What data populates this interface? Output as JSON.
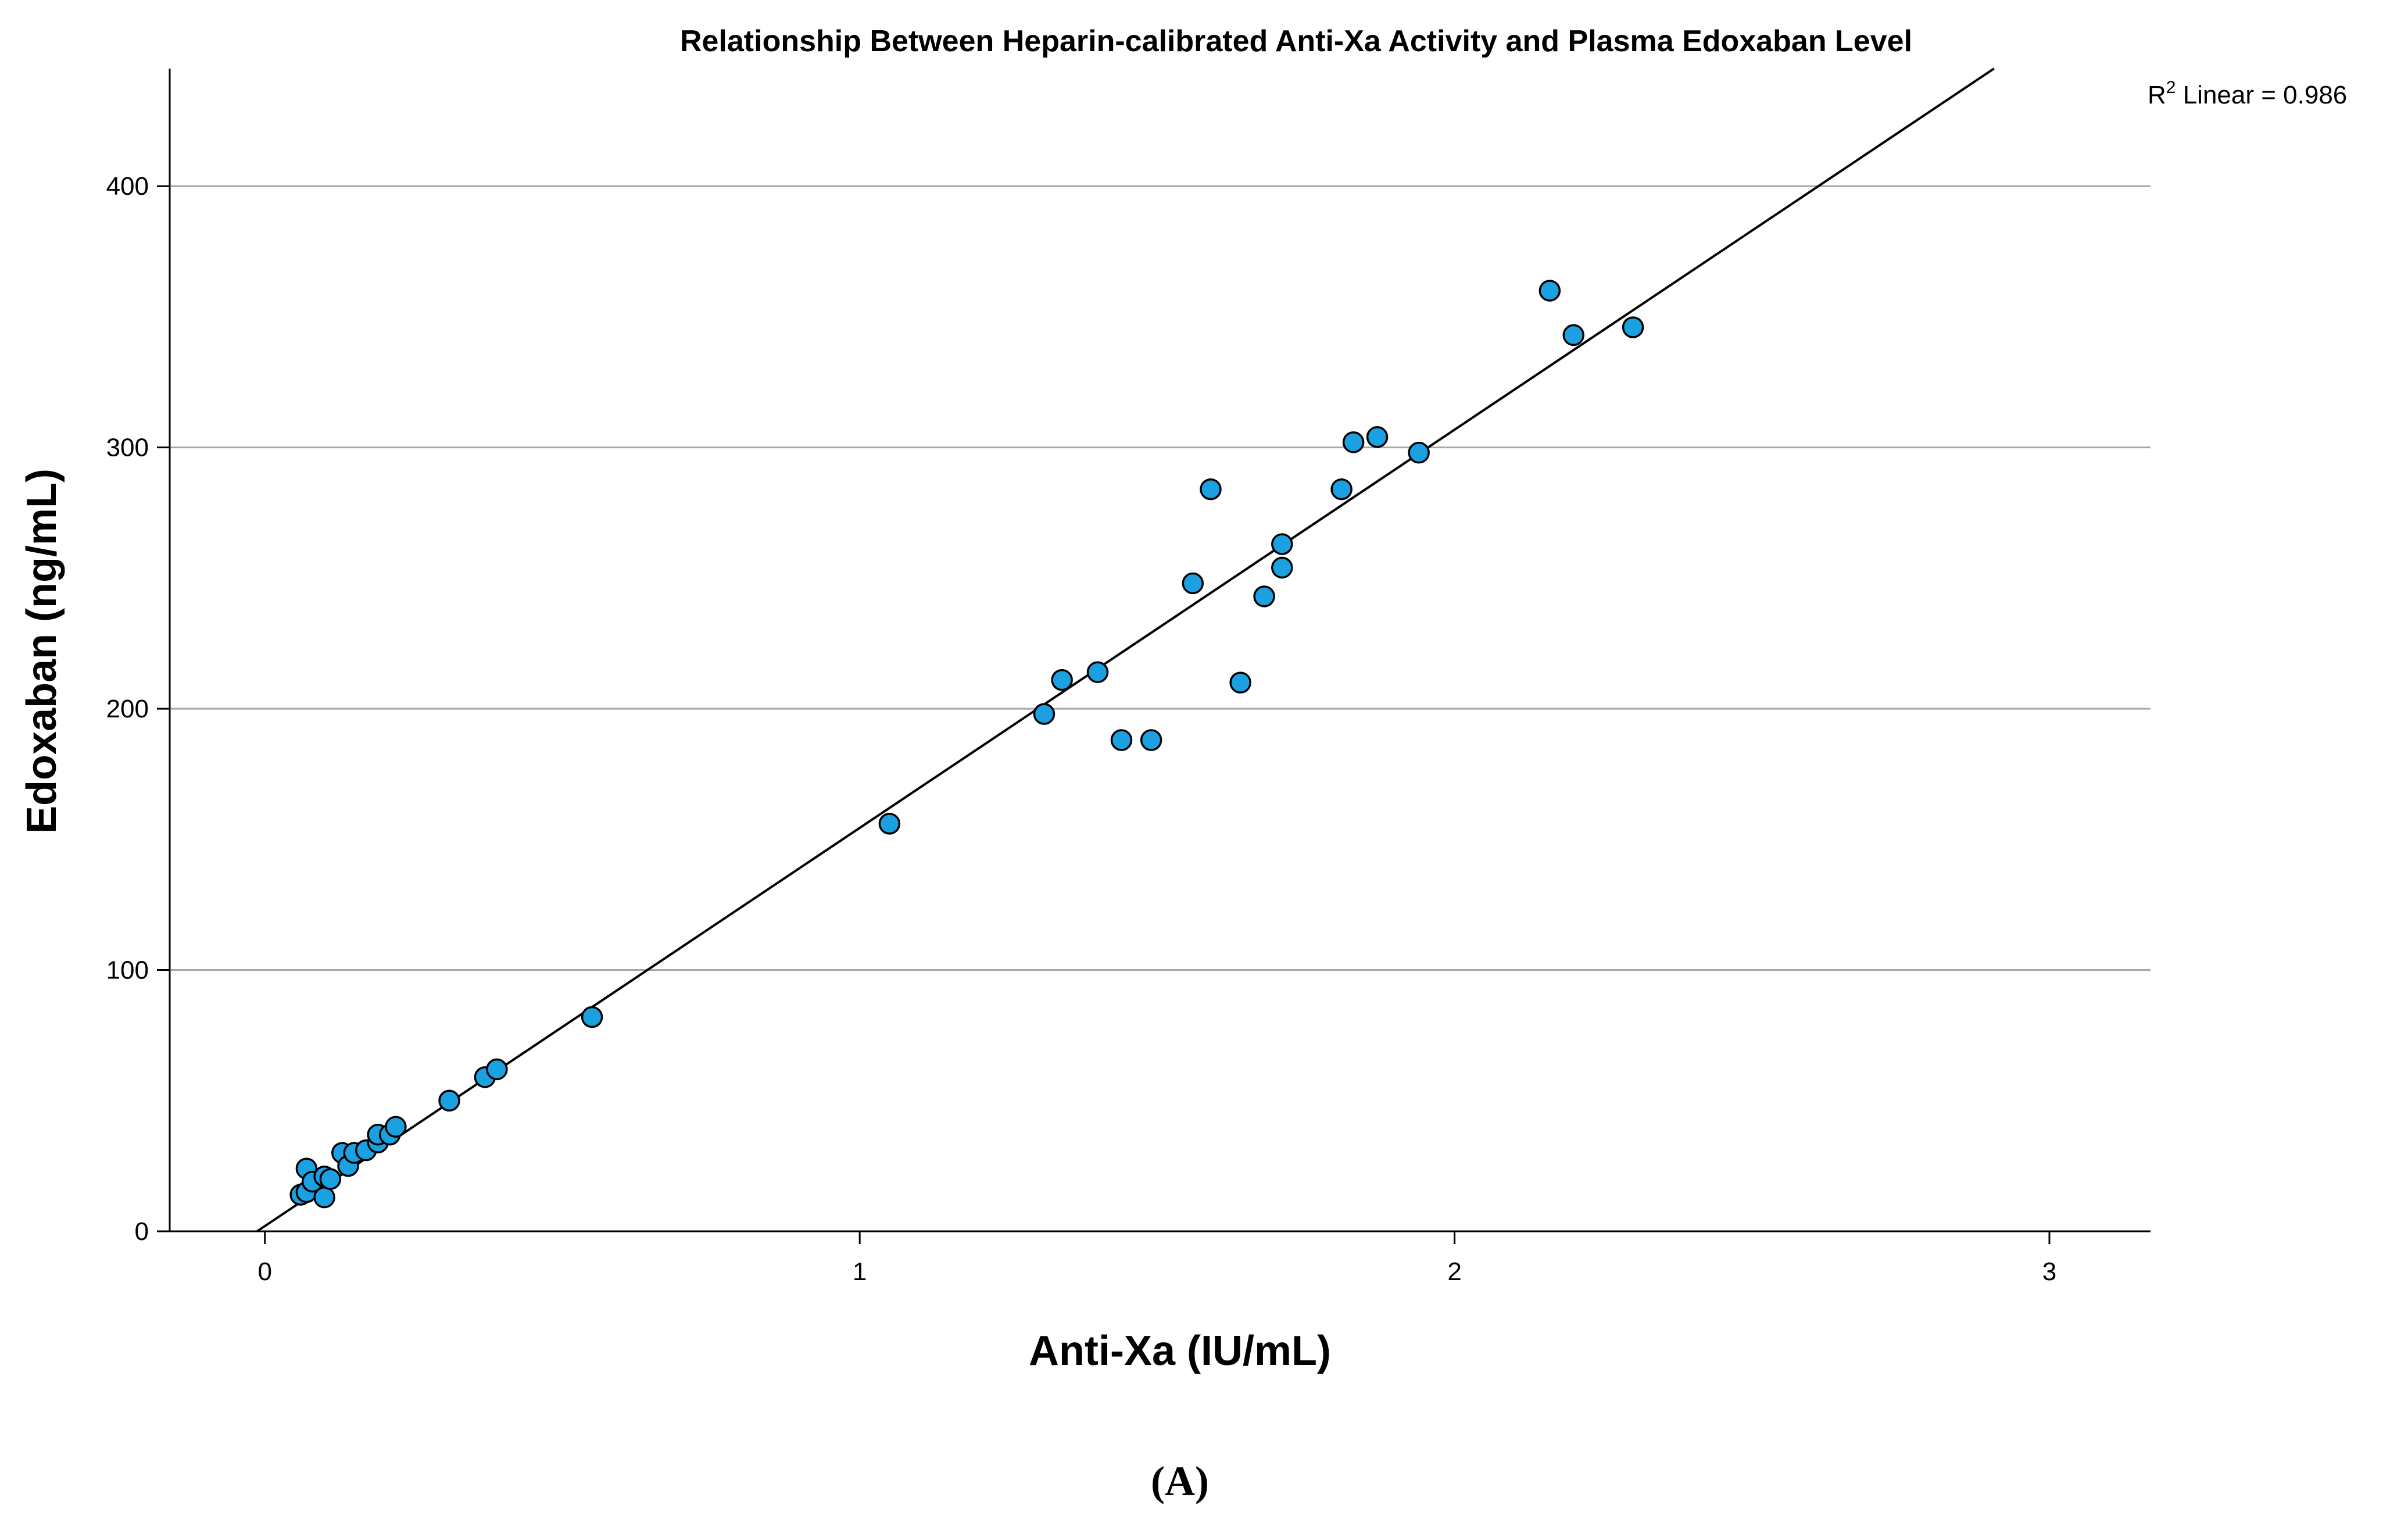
{
  "chart_data": {
    "type": "scatter",
    "title": "Relationship Between Heparin-calibrated Anti-Xa Activity and Plasma Edoxaban Level",
    "xlabel": "Anti-Xa (IU/mL)",
    "ylabel": "Edoxaban (ng/mL)",
    "xlim": [
      -0.16,
      3.17
    ],
    "ylim": [
      0,
      445
    ],
    "x_ticks": [
      0,
      1,
      2,
      3
    ],
    "y_ticks": [
      0,
      100,
      200,
      300,
      400
    ],
    "grid": {
      "horizontal": true,
      "vertical": false
    },
    "marker_color": "#1ba1e2",
    "marker_edge_color": "#000000",
    "fit_line": {
      "label_main": "R",
      "label_sup": "2",
      "label_rest": " Linear = 0.986",
      "slope": 152.4,
      "intercept": 2.0
    },
    "points": [
      {
        "x": 0.06,
        "y": 14
      },
      {
        "x": 0.07,
        "y": 15
      },
      {
        "x": 0.07,
        "y": 24
      },
      {
        "x": 0.08,
        "y": 19
      },
      {
        "x": 0.1,
        "y": 13
      },
      {
        "x": 0.1,
        "y": 21
      },
      {
        "x": 0.11,
        "y": 20
      },
      {
        "x": 0.13,
        "y": 30
      },
      {
        "x": 0.14,
        "y": 25
      },
      {
        "x": 0.15,
        "y": 30
      },
      {
        "x": 0.17,
        "y": 31
      },
      {
        "x": 0.19,
        "y": 34
      },
      {
        "x": 0.19,
        "y": 37
      },
      {
        "x": 0.21,
        "y": 37
      },
      {
        "x": 0.22,
        "y": 40
      },
      {
        "x": 0.31,
        "y": 50
      },
      {
        "x": 0.37,
        "y": 59
      },
      {
        "x": 0.39,
        "y": 62
      },
      {
        "x": 0.55,
        "y": 82
      },
      {
        "x": 1.05,
        "y": 156
      },
      {
        "x": 1.31,
        "y": 198
      },
      {
        "x": 1.34,
        "y": 211
      },
      {
        "x": 1.4,
        "y": 214
      },
      {
        "x": 1.44,
        "y": 188
      },
      {
        "x": 1.49,
        "y": 188
      },
      {
        "x": 1.56,
        "y": 248
      },
      {
        "x": 1.59,
        "y": 284
      },
      {
        "x": 1.64,
        "y": 210
      },
      {
        "x": 1.68,
        "y": 243
      },
      {
        "x": 1.71,
        "y": 254
      },
      {
        "x": 1.71,
        "y": 263
      },
      {
        "x": 1.81,
        "y": 284
      },
      {
        "x": 1.83,
        "y": 302
      },
      {
        "x": 1.87,
        "y": 304
      },
      {
        "x": 1.94,
        "y": 298
      },
      {
        "x": 2.16,
        "y": 360
      },
      {
        "x": 2.2,
        "y": 343
      },
      {
        "x": 2.3,
        "y": 346
      }
    ]
  },
  "panel_label": "(A)"
}
